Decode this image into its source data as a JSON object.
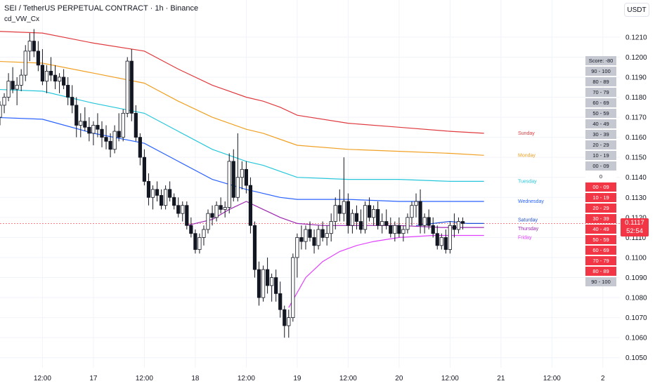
{
  "header": {
    "title": "SEI / TetherUS PERPETUAL CONTRACT · 1h · Binance",
    "indicator": "cd_VW_Cx",
    "currency": "USDT"
  },
  "price_tag": {
    "price": "0.1117",
    "countdown": "52:54",
    "color": "#f23645"
  },
  "scoreboard": {
    "header": "Score: -80",
    "cells": [
      {
        "label": "90 - 100",
        "style": "grey"
      },
      {
        "label": "80 - 89",
        "style": "grey"
      },
      {
        "label": "70 - 79",
        "style": "grey"
      },
      {
        "label": "60 - 69",
        "style": "grey"
      },
      {
        "label": "50 - 59",
        "style": "grey"
      },
      {
        "label": "40 - 49",
        "style": "grey"
      },
      {
        "label": "30 - 39",
        "style": "grey"
      },
      {
        "label": "20 - 29",
        "style": "grey"
      },
      {
        "label": "10 - 19",
        "style": "grey"
      },
      {
        "label": "00 - 09",
        "style": "grey"
      },
      {
        "label": "0",
        "style": "white"
      },
      {
        "label": "00 - 09",
        "style": "red"
      },
      {
        "label": "10 - 19",
        "style": "red"
      },
      {
        "label": "20 - 29",
        "style": "red"
      },
      {
        "label": "30 - 39",
        "style": "red"
      },
      {
        "label": "40 - 49",
        "style": "red"
      },
      {
        "label": "50 - 59",
        "style": "red"
      },
      {
        "label": "60 - 69",
        "style": "red"
      },
      {
        "label": "70 - 79",
        "style": "red"
      },
      {
        "label": "80 - 89",
        "style": "red"
      },
      {
        "label": "90 - 100",
        "style": "grey"
      }
    ]
  },
  "chart_data": {
    "type": "candlestick",
    "y_axis": {
      "ticks": [
        "0.1210",
        "0.1200",
        "0.1190",
        "0.1180",
        "0.1170",
        "0.1160",
        "0.1150",
        "0.1140",
        "0.1130",
        "0.1120",
        "0.1110",
        "0.1100",
        "0.1090",
        "0.1080",
        "0.1070",
        "0.1060",
        "0.1050"
      ],
      "ylim": [
        0.1045,
        0.1218
      ]
    },
    "x_axis": {
      "ticks": [
        "12:00",
        "17",
        "12:00",
        "18",
        "12:00",
        "19",
        "12:00",
        "20",
        "12:00",
        "21",
        "12:00",
        "2"
      ],
      "tick_hours": [
        12,
        24,
        36,
        48,
        60,
        72,
        84,
        96,
        108,
        120,
        132,
        144
      ],
      "xlim": [
        2,
        148
      ]
    },
    "bands": [
      {
        "name": "Sunday",
        "color": "#e03a3e",
        "points": [
          [
            0,
            0.1213
          ],
          [
            12,
            0.1212
          ],
          [
            24,
            0.1207
          ],
          [
            36,
            0.1203
          ],
          [
            44,
            0.1194
          ],
          [
            52,
            0.1186
          ],
          [
            60,
            0.118
          ],
          [
            64,
            0.1178
          ],
          [
            68,
            0.1175
          ],
          [
            72,
            0.1171
          ],
          [
            84,
            0.1167
          ],
          [
            96,
            0.1165
          ],
          [
            108,
            0.1163
          ],
          [
            116,
            0.1162
          ]
        ]
      },
      {
        "name": "Monday",
        "color": "#f0a023",
        "points": [
          [
            0,
            0.1198
          ],
          [
            12,
            0.1197
          ],
          [
            24,
            0.1192
          ],
          [
            36,
            0.1187
          ],
          [
            44,
            0.1178
          ],
          [
            52,
            0.117
          ],
          [
            60,
            0.1164
          ],
          [
            64,
            0.1162
          ],
          [
            68,
            0.1159
          ],
          [
            72,
            0.1156
          ],
          [
            84,
            0.1154
          ],
          [
            96,
            0.1153
          ],
          [
            108,
            0.1152
          ],
          [
            116,
            0.1151
          ]
        ]
      },
      {
        "name": "Tuesday",
        "color": "#26c6da",
        "points": [
          [
            0,
            0.1184
          ],
          [
            12,
            0.1183
          ],
          [
            24,
            0.1177
          ],
          [
            36,
            0.1172
          ],
          [
            44,
            0.1163
          ],
          [
            52,
            0.1154
          ],
          [
            60,
            0.1148
          ],
          [
            64,
            0.1146
          ],
          [
            68,
            0.1143
          ],
          [
            72,
            0.114
          ],
          [
            84,
            0.1139
          ],
          [
            96,
            0.1139
          ],
          [
            108,
            0.1138
          ],
          [
            116,
            0.1138
          ]
        ]
      },
      {
        "name": "Wednesday",
        "color": "#2962ff",
        "points": [
          [
            0,
            0.117
          ],
          [
            12,
            0.1169
          ],
          [
            24,
            0.1162
          ],
          [
            36,
            0.1157
          ],
          [
            44,
            0.1148
          ],
          [
            52,
            0.1139
          ],
          [
            60,
            0.1134
          ],
          [
            64,
            0.1132
          ],
          [
            68,
            0.113
          ],
          [
            72,
            0.1129
          ],
          [
            84,
            0.1129
          ],
          [
            96,
            0.1128
          ],
          [
            108,
            0.1128
          ],
          [
            116,
            0.1128
          ]
        ]
      },
      {
        "name": "Saturday",
        "color": "#1e4fd8",
        "points": [
          [
            100,
            0.1116
          ],
          [
            104,
            0.1117
          ],
          [
            108,
            0.1118
          ],
          [
            112,
            0.1117
          ],
          [
            116,
            0.1117
          ]
        ]
      },
      {
        "name": "Thursday",
        "color": "#9c27b0",
        "points": [
          [
            46,
            0.1116
          ],
          [
            52,
            0.1119
          ],
          [
            56,
            0.1124
          ],
          [
            60,
            0.1128
          ],
          [
            64,
            0.1124
          ],
          [
            68,
            0.112
          ],
          [
            72,
            0.1117
          ],
          [
            78,
            0.1116
          ],
          [
            84,
            0.1116
          ],
          [
            96,
            0.1116
          ],
          [
            106,
            0.1115
          ],
          [
            116,
            0.1115
          ]
        ]
      },
      {
        "name": "Friday",
        "color": "#e040fb",
        "points": [
          [
            70,
            0.1075
          ],
          [
            74,
            0.109
          ],
          [
            78,
            0.1098
          ],
          [
            82,
            0.1103
          ],
          [
            86,
            0.1106
          ],
          [
            90,
            0.1108
          ],
          [
            96,
            0.111
          ],
          [
            104,
            0.1111
          ],
          [
            110,
            0.1111
          ],
          [
            116,
            0.1111
          ]
        ]
      }
    ],
    "candles": [
      [
        2,
        0.117,
        0.1178,
        0.1166,
        0.1176
      ],
      [
        3,
        0.1176,
        0.1182,
        0.1172,
        0.118
      ],
      [
        4,
        0.118,
        0.1192,
        0.1178,
        0.1188
      ],
      [
        5,
        0.1188,
        0.1195,
        0.1182,
        0.1184
      ],
      [
        6,
        0.1184,
        0.119,
        0.1176,
        0.1186
      ],
      [
        7,
        0.1186,
        0.1194,
        0.1183,
        0.1191
      ],
      [
        8,
        0.1191,
        0.1206,
        0.1188,
        0.1203
      ],
      [
        9,
        0.1203,
        0.1212,
        0.1198,
        0.1208
      ],
      [
        10,
        0.1208,
        0.1214,
        0.12,
        0.1203
      ],
      [
        11,
        0.1203,
        0.1208,
        0.1193,
        0.1196
      ],
      [
        12,
        0.1196,
        0.1204,
        0.1186,
        0.1188
      ],
      [
        13,
        0.1188,
        0.1196,
        0.1182,
        0.1193
      ],
      [
        14,
        0.1193,
        0.12,
        0.1188,
        0.1191
      ],
      [
        15,
        0.1191,
        0.1196,
        0.1184,
        0.1188
      ],
      [
        16,
        0.1188,
        0.1192,
        0.1182,
        0.119
      ],
      [
        17,
        0.119,
        0.1194,
        0.1184,
        0.1186
      ],
      [
        18,
        0.1186,
        0.119,
        0.1176,
        0.118
      ],
      [
        19,
        0.118,
        0.1186,
        0.1172,
        0.1176
      ],
      [
        20,
        0.1176,
        0.118,
        0.116,
        0.1166
      ],
      [
        21,
        0.1166,
        0.1172,
        0.116,
        0.1168
      ],
      [
        22,
        0.1168,
        0.1175,
        0.1163,
        0.1165
      ],
      [
        23,
        0.1165,
        0.117,
        0.1158,
        0.1162
      ],
      [
        24,
        0.1162,
        0.1168,
        0.1156,
        0.1166
      ],
      [
        25,
        0.1166,
        0.1172,
        0.116,
        0.1164
      ],
      [
        26,
        0.1164,
        0.1168,
        0.1155,
        0.116
      ],
      [
        27,
        0.116,
        0.1166,
        0.1154,
        0.1158
      ],
      [
        28,
        0.1158,
        0.1162,
        0.115,
        0.1154
      ],
      [
        29,
        0.1154,
        0.1166,
        0.1152,
        0.1163
      ],
      [
        30,
        0.1163,
        0.1172,
        0.1158,
        0.116
      ],
      [
        31,
        0.116,
        0.1174,
        0.1158,
        0.1172
      ],
      [
        32,
        0.1172,
        0.12,
        0.117,
        0.1198
      ],
      [
        33,
        0.1198,
        0.1204,
        0.1168,
        0.1172
      ],
      [
        34,
        0.1172,
        0.1176,
        0.1158,
        0.116
      ],
      [
        35,
        0.116,
        0.1162,
        0.1146,
        0.115
      ],
      [
        36,
        0.115,
        0.1154,
        0.1136,
        0.1138
      ],
      [
        37,
        0.1138,
        0.1142,
        0.1126,
        0.113
      ],
      [
        38,
        0.113,
        0.1136,
        0.1124,
        0.1134
      ],
      [
        39,
        0.1134,
        0.1138,
        0.1128,
        0.1131
      ],
      [
        40,
        0.1131,
        0.1134,
        0.1124,
        0.1126
      ],
      [
        41,
        0.1126,
        0.1136,
        0.1124,
        0.1134
      ],
      [
        42,
        0.1134,
        0.1138,
        0.1128,
        0.113
      ],
      [
        43,
        0.113,
        0.1132,
        0.1124,
        0.1126
      ],
      [
        44,
        0.1126,
        0.113,
        0.112,
        0.1122
      ],
      [
        45,
        0.1122,
        0.1128,
        0.1118,
        0.1126
      ],
      [
        46,
        0.1126,
        0.1128,
        0.1114,
        0.1116
      ],
      [
        47,
        0.1116,
        0.112,
        0.111,
        0.1112
      ],
      [
        48,
        0.1112,
        0.1114,
        0.1102,
        0.1104
      ],
      [
        49,
        0.1104,
        0.1112,
        0.1102,
        0.111
      ],
      [
        50,
        0.111,
        0.1116,
        0.1106,
        0.1114
      ],
      [
        51,
        0.1114,
        0.1124,
        0.1112,
        0.1122
      ],
      [
        52,
        0.1122,
        0.1126,
        0.1116,
        0.112
      ],
      [
        53,
        0.112,
        0.1128,
        0.1118,
        0.1126
      ],
      [
        54,
        0.1126,
        0.113,
        0.1122,
        0.1124
      ],
      [
        55,
        0.1124,
        0.1128,
        0.112,
        0.1125
      ],
      [
        56,
        0.1125,
        0.1152,
        0.1122,
        0.1148
      ],
      [
        57,
        0.1148,
        0.1154,
        0.1128,
        0.113
      ],
      [
        58,
        0.113,
        0.1162,
        0.1128,
        0.114
      ],
      [
        59,
        0.114,
        0.1148,
        0.1134,
        0.1144
      ],
      [
        60,
        0.1144,
        0.1148,
        0.1132,
        0.1136
      ],
      [
        61,
        0.1136,
        0.114,
        0.1112,
        0.1116
      ],
      [
        62,
        0.1116,
        0.1118,
        0.109,
        0.1094
      ],
      [
        63,
        0.1094,
        0.1098,
        0.1076,
        0.108
      ],
      [
        64,
        0.108,
        0.1096,
        0.1078,
        0.1094
      ],
      [
        65,
        0.1094,
        0.11,
        0.1082,
        0.1086
      ],
      [
        66,
        0.1086,
        0.1092,
        0.1078,
        0.109
      ],
      [
        67,
        0.109,
        0.1094,
        0.1078,
        0.1082
      ],
      [
        68,
        0.1082,
        0.1088,
        0.107,
        0.1074
      ],
      [
        69,
        0.1074,
        0.1076,
        0.106,
        0.1066
      ],
      [
        70,
        0.1066,
        0.1074,
        0.106,
        0.107
      ],
      [
        71,
        0.107,
        0.1102,
        0.1068,
        0.11
      ],
      [
        72,
        0.11,
        0.1112,
        0.109,
        0.111
      ],
      [
        73,
        0.111,
        0.1116,
        0.1104,
        0.1108
      ],
      [
        74,
        0.1108,
        0.1116,
        0.1104,
        0.1114
      ],
      [
        75,
        0.1114,
        0.1118,
        0.1108,
        0.111
      ],
      [
        76,
        0.111,
        0.1114,
        0.1102,
        0.1106
      ],
      [
        77,
        0.1106,
        0.1116,
        0.1104,
        0.1114
      ],
      [
        78,
        0.1114,
        0.1118,
        0.1108,
        0.111
      ],
      [
        79,
        0.111,
        0.1116,
        0.1106,
        0.1112
      ],
      [
        80,
        0.1112,
        0.1122,
        0.1108,
        0.1118
      ],
      [
        81,
        0.1118,
        0.113,
        0.1114,
        0.1126
      ],
      [
        82,
        0.1126,
        0.1134,
        0.1118,
        0.1122
      ],
      [
        83,
        0.1122,
        0.115,
        0.1118,
        0.1128
      ],
      [
        84,
        0.1128,
        0.1132,
        0.1112,
        0.1116
      ],
      [
        85,
        0.1116,
        0.1124,
        0.1112,
        0.1122
      ],
      [
        86,
        0.1122,
        0.1126,
        0.1114,
        0.1118
      ],
      [
        87,
        0.1118,
        0.1124,
        0.1112,
        0.1114
      ],
      [
        88,
        0.1114,
        0.1128,
        0.1112,
        0.1126
      ],
      [
        89,
        0.1126,
        0.113,
        0.1118,
        0.112
      ],
      [
        90,
        0.112,
        0.1126,
        0.1116,
        0.1124
      ],
      [
        91,
        0.1124,
        0.1128,
        0.1114,
        0.1116
      ],
      [
        92,
        0.1116,
        0.1122,
        0.1112,
        0.1118
      ],
      [
        93,
        0.1118,
        0.1124,
        0.1114,
        0.1116
      ],
      [
        94,
        0.1116,
        0.112,
        0.111,
        0.1112
      ],
      [
        95,
        0.1112,
        0.1118,
        0.1108,
        0.1116
      ],
      [
        96,
        0.1116,
        0.112,
        0.111,
        0.1112
      ],
      [
        97,
        0.1112,
        0.1116,
        0.1108,
        0.1114
      ],
      [
        98,
        0.1114,
        0.1122,
        0.1112,
        0.112
      ],
      [
        99,
        0.112,
        0.1128,
        0.1116,
        0.1126
      ],
      [
        100,
        0.1126,
        0.1132,
        0.112,
        0.1128
      ],
      [
        101,
        0.1128,
        0.1134,
        0.1112,
        0.1116
      ],
      [
        102,
        0.1116,
        0.1122,
        0.1112,
        0.112
      ],
      [
        103,
        0.112,
        0.1124,
        0.1114,
        0.1116
      ],
      [
        104,
        0.1116,
        0.112,
        0.111,
        0.1112
      ],
      [
        105,
        0.1112,
        0.1116,
        0.1104,
        0.1106
      ],
      [
        106,
        0.1106,
        0.1112,
        0.1104,
        0.111
      ],
      [
        107,
        0.111,
        0.1114,
        0.1102,
        0.1104
      ],
      [
        108,
        0.1104,
        0.1118,
        0.1102,
        0.1116
      ],
      [
        109,
        0.1116,
        0.1122,
        0.111,
        0.1114
      ],
      [
        110,
        0.1114,
        0.112,
        0.1112,
        0.1118
      ],
      [
        111,
        0.1118,
        0.112,
        0.1114,
        0.1117
      ]
    ]
  }
}
